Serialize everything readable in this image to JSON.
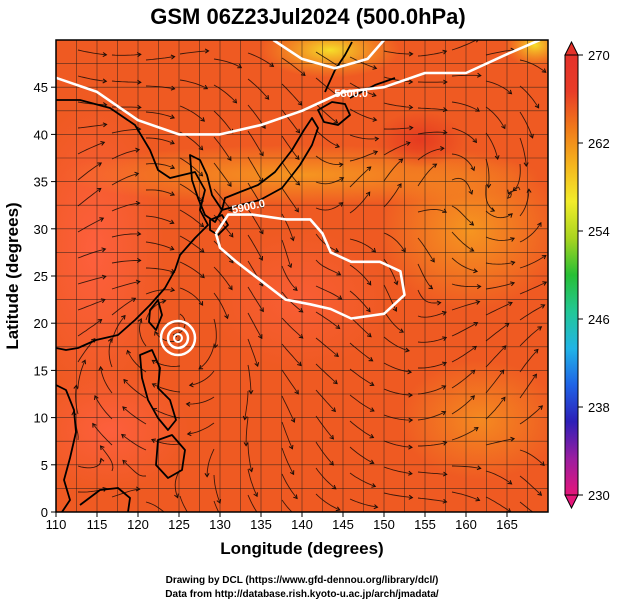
{
  "title": "GSM 06Z23Jul2024 (500.0hPa)",
  "x_axis": {
    "label": "Longitude (degrees)",
    "range": [
      110,
      170
    ],
    "ticks": [
      110,
      115,
      120,
      125,
      130,
      135,
      140,
      145,
      150,
      155,
      160,
      165
    ]
  },
  "y_axis": {
    "label": "Latitude  (degrees)",
    "range": [
      0,
      50
    ],
    "ticks": [
      0,
      5,
      10,
      15,
      20,
      25,
      30,
      35,
      40,
      45
    ]
  },
  "colorbar": {
    "ticks": [
      "270",
      "262",
      "254",
      "246",
      "238",
      "230"
    ],
    "min": 230,
    "max": 270,
    "colors": [
      "#e5167a",
      "#9b1ea0",
      "#2d1fb8",
      "#1f63e6",
      "#21b4e6",
      "#22c796",
      "#27bf35",
      "#a8d420",
      "#f2ec2a",
      "#f5b51e",
      "#f07a1a",
      "#e83c28",
      "#e4312a"
    ]
  },
  "contour_labels": [
    "5800.0",
    "5900.0"
  ],
  "credits": {
    "line1": "Drawing by DCL (https://www.gfd-dennou.org/library/dcl/)",
    "line2": "Data from http://database.rish.kyoto-u.ac.jp/arch/jmadata/"
  },
  "chart_data": {
    "type": "heatmap",
    "variable": "temperature at 500.0hPa with geopotential height contours and streamlines",
    "x_range": [
      110,
      170
    ],
    "y_range": [
      0,
      50
    ],
    "value_range": [
      230,
      270
    ],
    "contours": [
      {
        "label": "5800.0",
        "path": [
          [
            110,
            46
          ],
          [
            115,
            44.5
          ],
          [
            120,
            41.5
          ],
          [
            125,
            40
          ],
          [
            130,
            40
          ],
          [
            135,
            41
          ],
          [
            140,
            42.5
          ],
          [
            145,
            44.5
          ],
          [
            150,
            45
          ],
          [
            155,
            46.5
          ],
          [
            160,
            46.5
          ],
          [
            165,
            48.5
          ],
          [
            169,
            50
          ]
        ]
      },
      {
        "label": "5900.0",
        "path": [
          [
            129.5,
            29.5
          ],
          [
            131,
            31.5
          ],
          [
            134,
            31.5
          ],
          [
            138,
            31
          ],
          [
            141,
            31
          ],
          [
            142.5,
            29.5
          ],
          [
            143.5,
            27.5
          ],
          [
            146,
            26.5
          ],
          [
            149.5,
            26.5
          ],
          [
            152,
            25.5
          ],
          [
            152.5,
            23
          ],
          [
            150,
            21
          ],
          [
            146,
            20.5
          ],
          [
            143.5,
            21.5
          ],
          [
            141,
            22
          ],
          [
            138,
            22.5
          ],
          [
            135,
            24.5
          ],
          [
            132,
            26.5
          ],
          [
            130,
            28
          ],
          [
            129.5,
            29.5
          ]
        ]
      },
      {
        "label": "",
        "path": [
          [
            136.5,
            50
          ],
          [
            140,
            48
          ],
          [
            144,
            47
          ],
          [
            148,
            48
          ],
          [
            150,
            50
          ]
        ]
      }
    ],
    "cyclone_center": [
      124.8,
      20.5
    ]
  }
}
